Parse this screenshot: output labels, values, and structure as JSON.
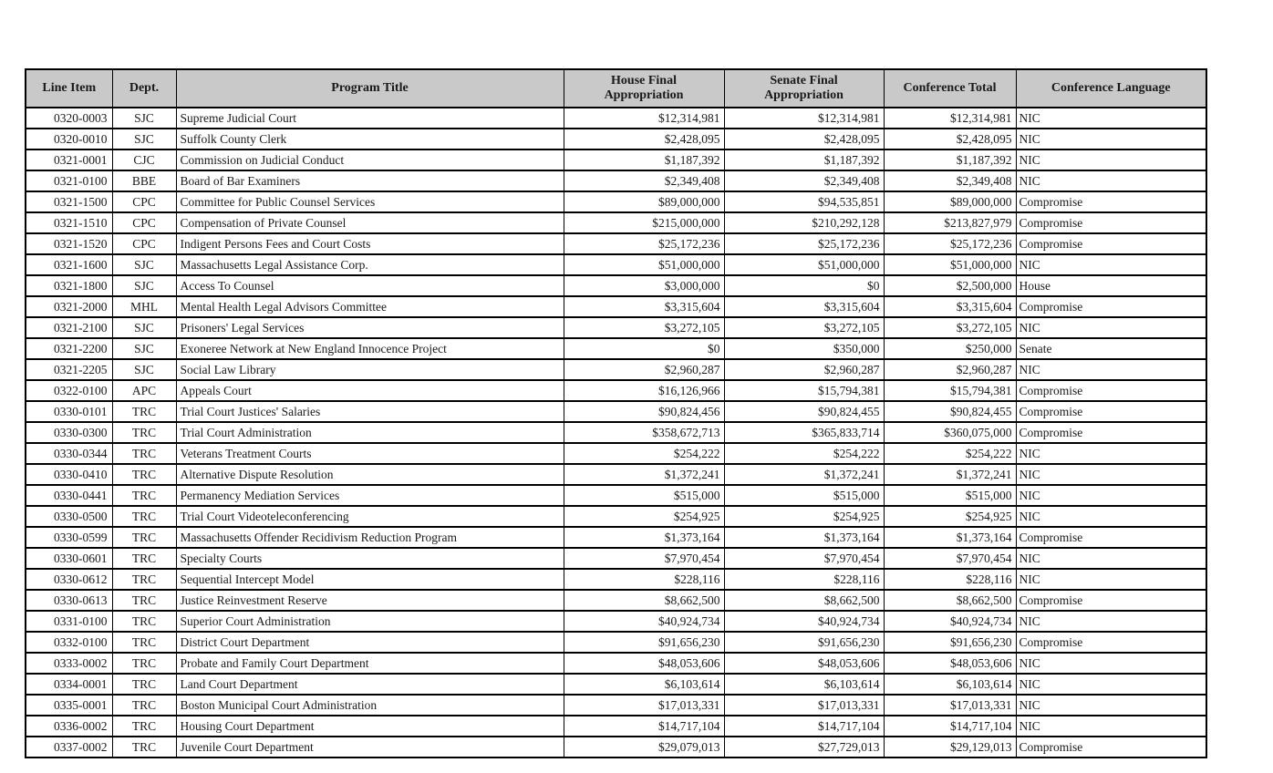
{
  "colors": {
    "header_bg": "#c9c9c9",
    "border": "#000000",
    "text": "#1a1a1a",
    "page_bg": "#ffffff"
  },
  "table": {
    "headers": [
      "Line Item",
      "Dept.",
      "Program Title",
      "House Final Appropriation",
      "Senate Final Appropriation",
      "Conference Total",
      "Conference Language"
    ],
    "rows": [
      [
        "0320-0003",
        "SJC",
        "Supreme Judicial Court",
        "$12,314,981",
        "$12,314,981",
        "$12,314,981",
        "NIC"
      ],
      [
        "0320-0010",
        "SJC",
        "Suffolk County Clerk",
        "$2,428,095",
        "$2,428,095",
        "$2,428,095",
        "NIC"
      ],
      [
        "0321-0001",
        "CJC",
        "Commission on Judicial Conduct",
        "$1,187,392",
        "$1,187,392",
        "$1,187,392",
        "NIC"
      ],
      [
        "0321-0100",
        "BBE",
        "Board of Bar Examiners",
        "$2,349,408",
        "$2,349,408",
        "$2,349,408",
        "NIC"
      ],
      [
        "0321-1500",
        "CPC",
        "Committee for Public Counsel Services",
        "$89,000,000",
        "$94,535,851",
        "$89,000,000",
        "Compromise"
      ],
      [
        "0321-1510",
        "CPC",
        "Compensation of Private Counsel",
        "$215,000,000",
        "$210,292,128",
        "$213,827,979",
        "Compromise"
      ],
      [
        "0321-1520",
        "CPC",
        "Indigent Persons Fees and Court Costs",
        "$25,172,236",
        "$25,172,236",
        "$25,172,236",
        "Compromise"
      ],
      [
        "0321-1600",
        "SJC",
        "Massachusetts Legal Assistance Corp.",
        "$51,000,000",
        "$51,000,000",
        "$51,000,000",
        "NIC"
      ],
      [
        "0321-1800",
        "SJC",
        "Access To Counsel",
        "$3,000,000",
        "$0",
        "$2,500,000",
        "House"
      ],
      [
        "0321-2000",
        "MHL",
        "Mental Health Legal Advisors Committee",
        "$3,315,604",
        "$3,315,604",
        "$3,315,604",
        "Compromise"
      ],
      [
        "0321-2100",
        "SJC",
        "Prisoners' Legal Services",
        "$3,272,105",
        "$3,272,105",
        "$3,272,105",
        "NIC"
      ],
      [
        "0321-2200",
        "SJC",
        "Exoneree Network at New England Innocence Project",
        "$0",
        "$350,000",
        "$250,000",
        "Senate"
      ],
      [
        "0321-2205",
        "SJC",
        "Social Law Library",
        "$2,960,287",
        "$2,960,287",
        "$2,960,287",
        "NIC"
      ],
      [
        "0322-0100",
        "APC",
        "Appeals Court",
        "$16,126,966",
        "$15,794,381",
        "$15,794,381",
        "Compromise"
      ],
      [
        "0330-0101",
        "TRC",
        "Trial Court Justices' Salaries",
        "$90,824,456",
        "$90,824,455",
        "$90,824,455",
        "Compromise"
      ],
      [
        "0330-0300",
        "TRC",
        "Trial Court Administration",
        "$358,672,713",
        "$365,833,714",
        "$360,075,000",
        "Compromise"
      ],
      [
        "0330-0344",
        "TRC",
        "Veterans Treatment Courts",
        "$254,222",
        "$254,222",
        "$254,222",
        "NIC"
      ],
      [
        "0330-0410",
        "TRC",
        "Alternative Dispute Resolution",
        "$1,372,241",
        "$1,372,241",
        "$1,372,241",
        "NIC"
      ],
      [
        "0330-0441",
        "TRC",
        "Permanency Mediation Services",
        "$515,000",
        "$515,000",
        "$515,000",
        "NIC"
      ],
      [
        "0330-0500",
        "TRC",
        "Trial Court Videoteleconferencing",
        "$254,925",
        "$254,925",
        "$254,925",
        "NIC"
      ],
      [
        "0330-0599",
        "TRC",
        "Massachusetts Offender Recidivism Reduction Program",
        "$1,373,164",
        "$1,373,164",
        "$1,373,164",
        "Compromise"
      ],
      [
        "0330-0601",
        "TRC",
        "Specialty Courts",
        "$7,970,454",
        "$7,970,454",
        "$7,970,454",
        "NIC"
      ],
      [
        "0330-0612",
        "TRC",
        "Sequential Intercept Model",
        "$228,116",
        "$228,116",
        "$228,116",
        "NIC"
      ],
      [
        "0330-0613",
        "TRC",
        "Justice Reinvestment Reserve",
        "$8,662,500",
        "$8,662,500",
        "$8,662,500",
        "Compromise"
      ],
      [
        "0331-0100",
        "TRC",
        "Superior Court Administration",
        "$40,924,734",
        "$40,924,734",
        "$40,924,734",
        "NIC"
      ],
      [
        "0332-0100",
        "TRC",
        "District Court Department",
        "$91,656,230",
        "$91,656,230",
        "$91,656,230",
        "Compromise"
      ],
      [
        "0333-0002",
        "TRC",
        "Probate and Family Court Department",
        "$48,053,606",
        "$48,053,606",
        "$48,053,606",
        "NIC"
      ],
      [
        "0334-0001",
        "TRC",
        "Land Court Department",
        "$6,103,614",
        "$6,103,614",
        "$6,103,614",
        "NIC"
      ],
      [
        "0335-0001",
        "TRC",
        "Boston Municipal Court Administration",
        "$17,013,331",
        "$17,013,331",
        "$17,013,331",
        "NIC"
      ],
      [
        "0336-0002",
        "TRC",
        "Housing Court Department",
        "$14,717,104",
        "$14,717,104",
        "$14,717,104",
        "NIC"
      ],
      [
        "0337-0002",
        "TRC",
        "Juvenile Court Department",
        "$29,079,013",
        "$27,729,013",
        "$29,129,013",
        "Compromise"
      ]
    ]
  }
}
